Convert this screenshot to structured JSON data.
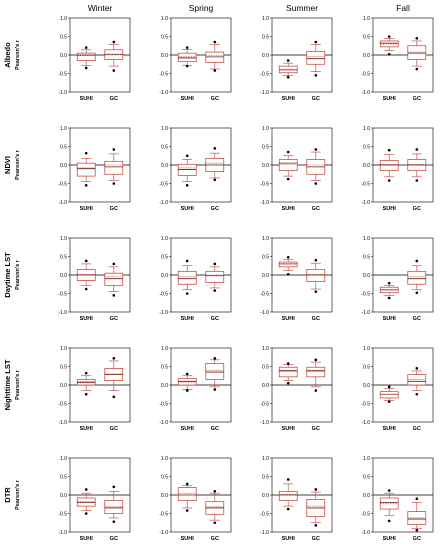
{
  "chart_data": {
    "type": "boxplot",
    "layout": "grid 5 rows x 4 columns",
    "columns": [
      "Winter",
      "Spring",
      "Summer",
      "Fall"
    ],
    "rows": [
      "Albedo",
      "NDVI",
      "Daytime LST",
      "Nighttime LST",
      "DTR"
    ],
    "y_axis_title": "Pearson's r",
    "ylim": [
      -1.0,
      1.0
    ],
    "yticks": [
      -1.0,
      -0.5,
      0.0,
      0.5,
      1.0
    ],
    "ytick_labels": [
      "-1.0",
      "-0.5",
      "0.0",
      "0.5",
      "1.0"
    ],
    "categories": [
      "SUHI",
      "GC"
    ],
    "reference_line_y": 0,
    "colors": {
      "box": "#c0392b",
      "median": "#6b1a12",
      "axis": "#000000",
      "outlier": "#000000"
    },
    "panels": [
      {
        "row": "Albedo",
        "season": "Winter",
        "SUHI": {
          "q1": -0.15,
          "median": 0.0,
          "mean": -0.02,
          "q3": 0.05,
          "whisker_low": -0.28,
          "whisker_high": 0.14,
          "outliers": [
            0.2,
            -0.35
          ]
        },
        "GC": {
          "q1": -0.12,
          "median": 0.02,
          "mean": 0.0,
          "q3": 0.14,
          "whisker_low": -0.3,
          "whisker_high": 0.28,
          "outliers": [
            0.35,
            -0.42
          ]
        }
      },
      {
        "row": "Albedo",
        "season": "Spring",
        "SUHI": {
          "q1": -0.18,
          "median": -0.08,
          "mean": -0.05,
          "q3": 0.05,
          "whisker_low": -0.28,
          "whisker_high": 0.15,
          "outliers": [
            0.2,
            -0.3
          ]
        },
        "GC": {
          "q1": -0.2,
          "median": -0.05,
          "mean": -0.02,
          "q3": 0.08,
          "whisker_low": -0.38,
          "whisker_high": 0.28,
          "outliers": [
            0.35,
            -0.42
          ]
        }
      },
      {
        "row": "Albedo",
        "season": "Summer",
        "SUHI": {
          "q1": -0.48,
          "median": -0.4,
          "mean": -0.4,
          "q3": -0.3,
          "whisker_low": -0.55,
          "whisker_high": -0.22,
          "outliers": [
            -0.15,
            -0.6
          ]
        },
        "GC": {
          "q1": -0.25,
          "median": -0.1,
          "mean": -0.05,
          "q3": 0.1,
          "whisker_low": -0.45,
          "whisker_high": 0.28,
          "outliers": [
            0.35,
            -0.55
          ]
        }
      },
      {
        "row": "Albedo",
        "season": "Fall",
        "SUHI": {
          "q1": 0.22,
          "median": 0.32,
          "mean": 0.3,
          "q3": 0.38,
          "whisker_low": 0.12,
          "whisker_high": 0.45,
          "outliers": [
            0.5,
            0.02
          ]
        },
        "GC": {
          "q1": -0.12,
          "median": 0.05,
          "mean": 0.08,
          "q3": 0.25,
          "whisker_low": -0.3,
          "whisker_high": 0.38,
          "outliers": [
            0.45,
            -0.38
          ]
        }
      },
      {
        "row": "NDVI",
        "season": "Winter",
        "SUHI": {
          "q1": -0.3,
          "median": -0.1,
          "mean": -0.08,
          "q3": 0.05,
          "whisker_low": -0.45,
          "whisker_high": 0.18,
          "outliers": [
            0.32,
            -0.55
          ]
        },
        "GC": {
          "q1": -0.25,
          "median": -0.05,
          "mean": 0.0,
          "q3": 0.1,
          "whisker_low": -0.42,
          "whisker_high": 0.3,
          "outliers": [
            0.42,
            -0.5
          ]
        }
      },
      {
        "row": "NDVI",
        "season": "Spring",
        "SUHI": {
          "q1": -0.28,
          "median": -0.12,
          "mean": -0.08,
          "q3": 0.02,
          "whisker_low": -0.45,
          "whisker_high": 0.15,
          "outliers": [
            0.25,
            -0.55
          ]
        },
        "GC": {
          "q1": -0.18,
          "median": 0.0,
          "mean": 0.05,
          "q3": 0.18,
          "whisker_low": -0.35,
          "whisker_high": 0.32,
          "outliers": [
            0.45,
            -0.4
          ]
        }
      },
      {
        "row": "NDVI",
        "season": "Summer",
        "SUHI": {
          "q1": -0.15,
          "median": 0.05,
          "mean": 0.02,
          "q3": 0.15,
          "whisker_low": -0.3,
          "whisker_high": 0.25,
          "outliers": [
            0.35,
            -0.38
          ]
        },
        "GC": {
          "q1": -0.25,
          "median": -0.05,
          "mean": 0.0,
          "q3": 0.15,
          "whisker_low": -0.42,
          "whisker_high": 0.35,
          "outliers": [
            0.42,
            -0.5
          ]
        }
      },
      {
        "row": "NDVI",
        "season": "Fall",
        "SUHI": {
          "q1": -0.15,
          "median": 0.0,
          "mean": 0.02,
          "q3": 0.12,
          "whisker_low": -0.32,
          "whisker_high": 0.28,
          "outliers": [
            0.4,
            -0.42
          ]
        },
        "GC": {
          "q1": -0.15,
          "median": 0.0,
          "mean": 0.02,
          "q3": 0.15,
          "whisker_low": -0.32,
          "whisker_high": 0.3,
          "outliers": [
            0.42,
            -0.42
          ]
        }
      },
      {
        "row": "Daytime LST",
        "season": "Winter",
        "SUHI": {
          "q1": -0.15,
          "median": 0.0,
          "mean": 0.02,
          "q3": 0.15,
          "whisker_low": -0.28,
          "whisker_high": 0.3,
          "outliers": [
            0.38,
            -0.38
          ]
        },
        "GC": {
          "q1": -0.28,
          "median": -0.1,
          "mean": -0.05,
          "q3": 0.05,
          "whisker_low": -0.45,
          "whisker_high": 0.22,
          "outliers": [
            0.3,
            -0.55
          ]
        }
      },
      {
        "row": "Daytime LST",
        "season": "Spring",
        "SUHI": {
          "q1": -0.25,
          "median": -0.1,
          "mean": -0.05,
          "q3": 0.1,
          "whisker_low": -0.4,
          "whisker_high": 0.25,
          "outliers": [
            0.38,
            -0.5
          ]
        },
        "GC": {
          "q1": -0.2,
          "median": -0.02,
          "mean": 0.0,
          "q3": 0.1,
          "whisker_low": -0.35,
          "whisker_high": 0.22,
          "outliers": [
            0.3,
            -0.42
          ]
        }
      },
      {
        "row": "Daytime LST",
        "season": "Summer",
        "SUHI": {
          "q1": 0.22,
          "median": 0.3,
          "mean": 0.3,
          "q3": 0.35,
          "whisker_low": 0.12,
          "whisker_high": 0.42,
          "outliers": [
            0.48,
            0.02
          ]
        },
        "GC": {
          "q1": -0.18,
          "median": 0.0,
          "mean": 0.02,
          "q3": 0.15,
          "whisker_low": -0.38,
          "whisker_high": 0.32,
          "outliers": [
            0.4,
            -0.45
          ]
        }
      },
      {
        "row": "Daytime LST",
        "season": "Fall",
        "SUHI": {
          "q1": -0.48,
          "median": -0.4,
          "mean": -0.4,
          "q3": -0.33,
          "whisker_low": -0.55,
          "whisker_high": -0.28,
          "outliers": [
            -0.22,
            -0.62
          ]
        },
        "GC": {
          "q1": -0.25,
          "median": -0.1,
          "mean": -0.05,
          "q3": 0.1,
          "whisker_low": -0.4,
          "whisker_high": 0.25,
          "outliers": [
            0.38,
            -0.48
          ]
        }
      },
      {
        "row": "Nighttime LST",
        "season": "Winter",
        "SUHI": {
          "q1": 0.0,
          "median": 0.08,
          "mean": 0.06,
          "q3": 0.15,
          "whisker_low": -0.15,
          "whisker_high": 0.25,
          "outliers": [
            0.32,
            -0.25
          ]
        },
        "GC": {
          "q1": 0.12,
          "median": 0.28,
          "mean": 0.3,
          "q3": 0.45,
          "whisker_low": -0.15,
          "whisker_high": 0.65,
          "outliers": [
            0.72,
            -0.32
          ]
        }
      },
      {
        "row": "Nighttime LST",
        "season": "Spring",
        "SUHI": {
          "q1": 0.0,
          "median": 0.1,
          "mean": 0.08,
          "q3": 0.18,
          "whisker_low": -0.12,
          "whisker_high": 0.25,
          "outliers": [
            0.3,
            -0.15
          ]
        },
        "GC": {
          "q1": 0.15,
          "median": 0.35,
          "mean": 0.4,
          "q3": 0.58,
          "whisker_low": -0.05,
          "whisker_high": 0.68,
          "outliers": [
            0.72,
            -0.12
          ]
        }
      },
      {
        "row": "Nighttime LST",
        "season": "Summer",
        "SUHI": {
          "q1": 0.22,
          "median": 0.38,
          "mean": 0.4,
          "q3": 0.48,
          "whisker_low": 0.12,
          "whisker_high": 0.55,
          "outliers": [
            0.58,
            0.05
          ]
        },
        "GC": {
          "q1": 0.22,
          "median": 0.38,
          "mean": 0.4,
          "q3": 0.48,
          "whisker_low": -0.05,
          "whisker_high": 0.62,
          "outliers": [
            0.68,
            -0.15
          ]
        }
      },
      {
        "row": "Nighttime LST",
        "season": "Fall",
        "SUHI": {
          "q1": -0.35,
          "median": -0.25,
          "mean": -0.25,
          "q3": -0.18,
          "whisker_low": -0.42,
          "whisker_high": -0.1,
          "outliers": [
            -0.05,
            -0.45
          ]
        },
        "GC": {
          "q1": 0.0,
          "median": 0.1,
          "mean": 0.15,
          "q3": 0.28,
          "whisker_low": -0.15,
          "whisker_high": 0.38,
          "outliers": [
            0.45,
            -0.25
          ]
        }
      },
      {
        "row": "DTR",
        "season": "Winter",
        "SUHI": {
          "q1": -0.3,
          "median": -0.2,
          "mean": -0.18,
          "q3": -0.08,
          "whisker_low": -0.42,
          "whisker_high": 0.05,
          "outliers": [
            0.15,
            -0.5
          ]
        },
        "GC": {
          "q1": -0.5,
          "median": -0.35,
          "mean": -0.32,
          "q3": -0.15,
          "whisker_low": -0.62,
          "whisker_high": 0.1,
          "outliers": [
            0.22,
            -0.72
          ]
        }
      },
      {
        "row": "DTR",
        "season": "Spring",
        "SUHI": {
          "q1": -0.15,
          "median": 0.0,
          "mean": 0.05,
          "q3": 0.2,
          "whisker_low": -0.35,
          "whisker_high": 0.25,
          "outliers": [
            0.3,
            -0.42
          ]
        },
        "GC": {
          "q1": -0.52,
          "median": -0.35,
          "mean": -0.32,
          "q3": -0.18,
          "whisker_low": -0.68,
          "whisker_high": 0.05,
          "outliers": [
            0.1,
            -0.75
          ]
        }
      },
      {
        "row": "DTR",
        "season": "Summer",
        "SUHI": {
          "q1": -0.15,
          "median": 0.0,
          "mean": 0.02,
          "q3": 0.1,
          "whisker_low": -0.3,
          "whisker_high": 0.3,
          "outliers": [
            0.42,
            -0.38
          ]
        },
        "GC": {
          "q1": -0.58,
          "median": -0.35,
          "mean": -0.3,
          "q3": -0.12,
          "whisker_low": -0.75,
          "whisker_high": 0.08,
          "outliers": [
            0.15,
            -0.82
          ]
        }
      },
      {
        "row": "DTR",
        "season": "Fall",
        "SUHI": {
          "q1": -0.38,
          "median": -0.2,
          "mean": -0.22,
          "q3": -0.08,
          "whisker_low": -0.55,
          "whisker_high": 0.05,
          "outliers": [
            0.12,
            -0.7
          ]
        },
        "GC": {
          "q1": -0.8,
          "median": -0.65,
          "mean": -0.62,
          "q3": -0.45,
          "whisker_low": -0.9,
          "whisker_high": -0.2,
          "outliers": [
            -0.1,
            -0.95
          ]
        }
      }
    ]
  }
}
